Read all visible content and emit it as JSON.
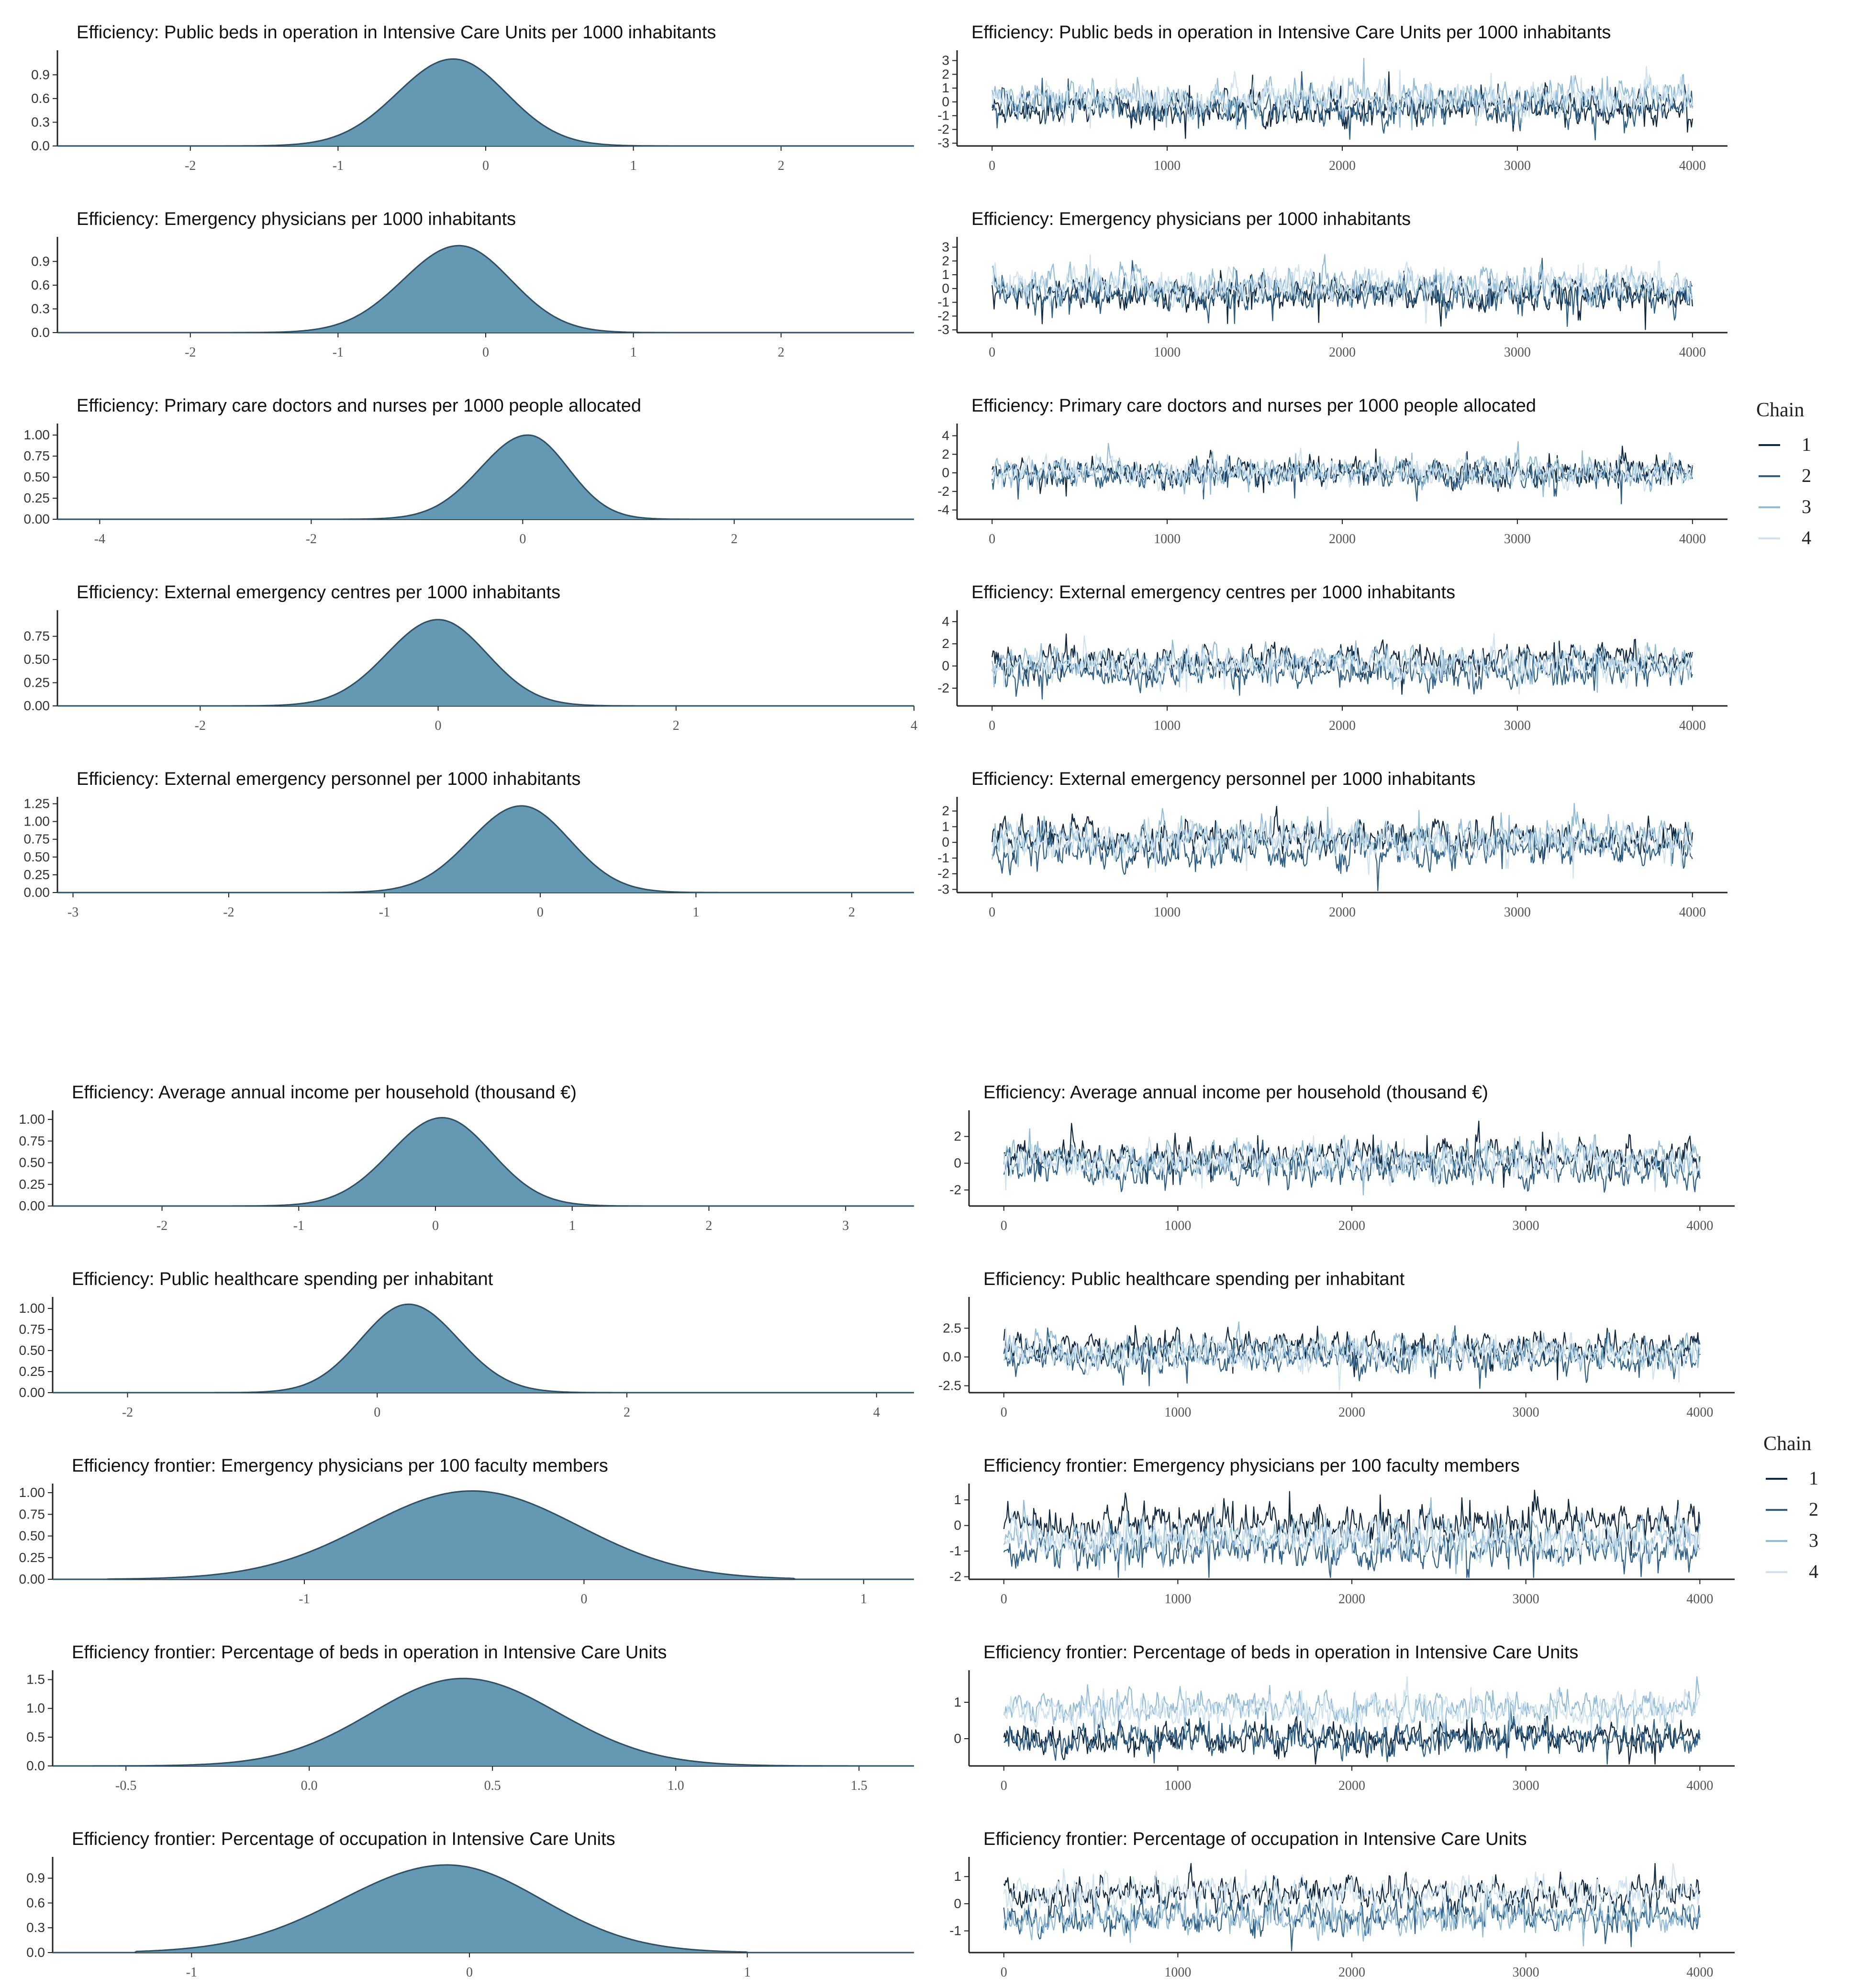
{
  "colors": {
    "density_fill": "#6598b3",
    "density_line": "#2c5068",
    "axis": "#222222",
    "chains": [
      "#0f2840",
      "#2e5f86",
      "#92bbd6",
      "#cfe2ef"
    ]
  },
  "legends": [
    {
      "title": "Chain",
      "items": [
        "1",
        "2",
        "3",
        "4"
      ]
    },
    {
      "title": "Chain",
      "items": [
        "1",
        "2",
        "3",
        "4"
      ]
    }
  ],
  "chart_data": [
    {
      "type": "area",
      "panel": "density",
      "title": "Efficiency: Public beds in operation in Intensive Care Units per 1000 inhabitants",
      "xlim": [
        -2.9,
        2.9
      ],
      "xticks": [
        -2,
        -1,
        0,
        1,
        2
      ],
      "ylim": [
        0,
        1.15
      ],
      "yticks": [
        0.0,
        0.3,
        0.6,
        0.9
      ],
      "ytick_labels": [
        "0.0",
        "0.3",
        "0.6",
        "0.9"
      ],
      "mode": -0.22,
      "peak": 1.1,
      "sd_left": 0.38,
      "sd_right": 0.36,
      "support": [
        -2.0,
        1.5
      ]
    },
    {
      "type": "area",
      "panel": "density",
      "title": "Efficiency: Emergency physicians per 1000 inhabitants",
      "xlim": [
        -2.9,
        2.9
      ],
      "xticks": [
        -2,
        -1,
        0,
        1,
        2
      ],
      "ylim": [
        0,
        1.15
      ],
      "yticks": [
        0.0,
        0.3,
        0.6,
        0.9
      ],
      "ytick_labels": [
        "0.0",
        "0.3",
        "0.6",
        "0.9"
      ],
      "mode": -0.18,
      "peak": 1.1,
      "sd_left": 0.38,
      "sd_right": 0.35,
      "support": [
        -2.9,
        2.9
      ]
    },
    {
      "type": "area",
      "panel": "density",
      "title": "Efficiency: Primary care doctors and nurses per 1000 people allocated",
      "xlim": [
        -4.4,
        3.7
      ],
      "xticks": [
        -4,
        -2,
        0,
        2
      ],
      "ylim": [
        0,
        1.08
      ],
      "yticks": [
        0.0,
        0.25,
        0.5,
        0.75,
        1.0
      ],
      "ytick_labels": [
        "0.00",
        "0.25",
        "0.50",
        "0.75",
        "1.00"
      ],
      "mode": 0.05,
      "peak": 1.0,
      "sd_left": 0.45,
      "sd_right": 0.38,
      "support": [
        -1.7,
        2.0
      ]
    },
    {
      "type": "area",
      "panel": "density",
      "title": "Efficiency: External emergency centres per 1000 inhabitants",
      "xlim": [
        -3.2,
        4.0
      ],
      "xticks": [
        -2,
        0,
        2,
        4
      ],
      "ylim": [
        0,
        0.98
      ],
      "yticks": [
        0.0,
        0.25,
        0.5,
        0.75
      ],
      "ytick_labels": [
        "0.00",
        "0.25",
        "0.50",
        "0.75"
      ],
      "mode": 0.0,
      "peak": 0.93,
      "sd_left": 0.43,
      "sd_right": 0.41,
      "support": [
        -3.2,
        4.0
      ]
    },
    {
      "type": "area",
      "panel": "density",
      "title": "Efficiency: External emergency personnel per 1000 inhabitants",
      "xlim": [
        -3.1,
        2.4
      ],
      "xticks": [
        -3,
        -2,
        -1,
        0,
        1,
        2
      ],
      "ylim": [
        0,
        1.28
      ],
      "yticks": [
        0.0,
        0.25,
        0.5,
        0.75,
        1.0,
        1.25
      ],
      "ytick_labels": [
        "0.00",
        "0.25",
        "0.50",
        "0.75",
        "1.00",
        "1.25"
      ],
      "mode": -0.12,
      "peak": 1.22,
      "sd_left": 0.33,
      "sd_right": 0.31,
      "support": [
        -1.4,
        1.3
      ]
    },
    {
      "type": "area",
      "panel": "density",
      "title": "Efficiency: Average annual income per household (thousand €)",
      "xlim": [
        -2.8,
        3.5
      ],
      "xticks": [
        -2,
        -1,
        0,
        1,
        2,
        3
      ],
      "ylim": [
        0,
        1.05
      ],
      "yticks": [
        0.0,
        0.25,
        0.5,
        0.75,
        1.0
      ],
      "ytick_labels": [
        "0.00",
        "0.25",
        "0.50",
        "0.75",
        "1.00"
      ],
      "mode": 0.05,
      "peak": 1.02,
      "sd_left": 0.38,
      "sd_right": 0.36,
      "support": [
        -1.9,
        2.1
      ]
    },
    {
      "type": "area",
      "panel": "density",
      "title": "Efficiency: Public healthcare spending per inhabitant",
      "xlim": [
        -2.6,
        4.3
      ],
      "xticks": [
        -2,
        0,
        2,
        4
      ],
      "ylim": [
        0,
        1.08
      ],
      "yticks": [
        0.0,
        0.25,
        0.5,
        0.75,
        1.0
      ],
      "ytick_labels": [
        "0.00",
        "0.25",
        "0.50",
        "0.75",
        "1.00"
      ],
      "mode": 0.25,
      "peak": 1.05,
      "sd_left": 0.38,
      "sd_right": 0.4,
      "support": [
        -2.6,
        4.3
      ]
    },
    {
      "type": "area",
      "panel": "density",
      "title": "Efficiency frontier: Emergency physicians per 100 faculty members",
      "xlim": [
        -1.9,
        1.18
      ],
      "xticks": [
        -1,
        0,
        1
      ],
      "ylim": [
        0,
        1.05
      ],
      "yticks": [
        0.0,
        0.25,
        0.5,
        0.75,
        1.0
      ],
      "ytick_labels": [
        "0.00",
        "0.25",
        "0.50",
        "0.75",
        "1.00"
      ],
      "mode": -0.4,
      "peak": 1.02,
      "sd_left": 0.38,
      "sd_right": 0.38,
      "support": [
        -1.7,
        0.75
      ]
    },
    {
      "type": "area",
      "panel": "density",
      "title": "Efficiency frontier: Percentage of beds in operation in Intensive Care Units",
      "xlim": [
        -0.7,
        1.65
      ],
      "xticks": [
        -0.5,
        0.0,
        0.5,
        1.0,
        1.5
      ],
      "xtick_labels": [
        "-0.5",
        "0.0",
        "0.5",
        "1.0",
        "1.5"
      ],
      "ylim": [
        0,
        1.58
      ],
      "yticks": [
        0.0,
        0.5,
        1.0,
        1.5
      ],
      "ytick_labels": [
        "0.0",
        "0.5",
        "1.0",
        "1.5"
      ],
      "mode": 0.42,
      "peak": 1.52,
      "sd_left": 0.25,
      "sd_right": 0.26,
      "support": [
        -0.7,
        1.65
      ]
    },
    {
      "type": "area",
      "panel": "density",
      "title": "Efficiency frontier: Percentage of occupation in Intensive Care Units",
      "xlim": [
        -1.5,
        1.6
      ],
      "xticks": [
        -1,
        0,
        1
      ],
      "ylim": [
        0,
        1.1
      ],
      "yticks": [
        0.0,
        0.3,
        0.6,
        0.9
      ],
      "ytick_labels": [
        "0.0",
        "0.3",
        "0.6",
        "0.9"
      ],
      "mode": -0.08,
      "peak": 1.06,
      "sd_left": 0.38,
      "sd_right": 0.34,
      "support": [
        -1.2,
        1.0
      ]
    },
    {
      "type": "line",
      "panel": "trace",
      "title": "Efficiency: Public beds in operation in Intensive Care Units per 1000 inhabitants",
      "xlim": [
        -200,
        4200
      ],
      "xticks": [
        0,
        1000,
        2000,
        3000,
        4000
      ],
      "ylim": [
        -3.2,
        3.4
      ],
      "yticks": [
        -3,
        -2,
        -1,
        0,
        1,
        2,
        3
      ],
      "ytick_labels": [
        "-3",
        "-2",
        "-1",
        "0",
        "1",
        "2",
        "3"
      ],
      "iterations": 4000,
      "chains": 4,
      "chain_means": [
        -0.45,
        -0.45,
        0.25,
        0.25
      ],
      "chain_sd": 0.5
    },
    {
      "type": "line",
      "panel": "trace",
      "title": "Efficiency: Emergency physicians per 1000 inhabitants",
      "xlim": [
        -200,
        4200
      ],
      "xticks": [
        0,
        1000,
        2000,
        3000,
        4000
      ],
      "ylim": [
        -3.2,
        3.4
      ],
      "yticks": [
        -3,
        -2,
        -1,
        0,
        1,
        2,
        3
      ],
      "ytick_labels": [
        "-3",
        "-2",
        "-1",
        "0",
        "1",
        "2",
        "3"
      ],
      "iterations": 4000,
      "chains": 4,
      "chain_means": [
        -0.45,
        -0.45,
        0.25,
        0.25
      ],
      "chain_sd": 0.5
    },
    {
      "type": "line",
      "panel": "trace",
      "title": "Efficiency: Primary care doctors and nurses per 1000 people allocated",
      "xlim": [
        -200,
        4200
      ],
      "xticks": [
        0,
        1000,
        2000,
        3000,
        4000
      ],
      "ylim": [
        -5,
        4.8
      ],
      "yticks": [
        -4,
        -2,
        0,
        2,
        4
      ],
      "ytick_labels": [
        "-4",
        "-2",
        "0",
        "2",
        "4"
      ],
      "iterations": 4000,
      "chains": 4,
      "chain_means": [
        0.1,
        -0.3,
        0.2,
        0.0
      ],
      "chain_sd": 0.6
    },
    {
      "type": "line",
      "panel": "trace",
      "title": "Efficiency: External emergency centres per 1000 inhabitants",
      "xlim": [
        -200,
        4200
      ],
      "xticks": [
        0,
        1000,
        2000,
        3000,
        4000
      ],
      "ylim": [
        -3.6,
        4.6
      ],
      "yticks": [
        -2,
        0,
        2,
        4
      ],
      "ytick_labels": [
        "-2",
        "0",
        "2",
        "4"
      ],
      "iterations": 4000,
      "chains": 4,
      "chain_means": [
        0.5,
        -0.6,
        0.4,
        0.0
      ],
      "chain_sd": 0.55
    },
    {
      "type": "line",
      "panel": "trace",
      "title": "Efficiency: External emergency personnel per 1000 inhabitants",
      "xlim": [
        -200,
        4200
      ],
      "xticks": [
        0,
        1000,
        2000,
        3000,
        4000
      ],
      "ylim": [
        -3.2,
        2.6
      ],
      "yticks": [
        -3,
        -2,
        -1,
        0,
        1,
        2
      ],
      "ytick_labels": [
        "-3",
        "-2",
        "-1",
        "0",
        "1",
        "2"
      ],
      "iterations": 4000,
      "chains": 4,
      "chain_means": [
        0.3,
        -0.6,
        0.4,
        0.0
      ],
      "chain_sd": 0.45
    },
    {
      "type": "line",
      "panel": "trace",
      "title": "Efficiency: Average annual income per household (thousand €)",
      "xlim": [
        -200,
        4200
      ],
      "xticks": [
        0,
        1000,
        2000,
        3000,
        4000
      ],
      "ylim": [
        -3.2,
        3.6
      ],
      "yticks": [
        -2,
        0,
        2
      ],
      "ytick_labels": [
        "-2",
        "0",
        "2"
      ],
      "iterations": 4000,
      "chains": 4,
      "chain_means": [
        0.5,
        -0.5,
        0.4,
        0.0
      ],
      "chain_sd": 0.5
    },
    {
      "type": "line",
      "panel": "trace",
      "title": "Efficiency: Public healthcare spending per inhabitant",
      "xlim": [
        -200,
        4200
      ],
      "xticks": [
        0,
        1000,
        2000,
        3000,
        4000
      ],
      "ylim": [
        -3.1,
        4.8
      ],
      "yticks": [
        -2.5,
        0.0,
        2.5
      ],
      "ytick_labels": [
        "-2.5",
        "0.0",
        "2.5"
      ],
      "iterations": 4000,
      "chains": 4,
      "chain_means": [
        0.8,
        -0.2,
        0.6,
        0.2
      ],
      "chain_sd": 0.55
    },
    {
      "type": "line",
      "panel": "trace",
      "title": "Efficiency frontier: Emergency physicians per 100 faculty members",
      "xlim": [
        -200,
        4200
      ],
      "xticks": [
        0,
        1000,
        2000,
        3000,
        4000
      ],
      "ylim": [
        -2.1,
        1.45
      ],
      "yticks": [
        -2,
        -1,
        0,
        1
      ],
      "ytick_labels": [
        "-2",
        "-1",
        "0",
        "1"
      ],
      "iterations": 4000,
      "chains": 4,
      "chain_means": [
        0.1,
        -1.0,
        -0.5,
        -0.5
      ],
      "chain_sd": 0.3
    },
    {
      "type": "line",
      "panel": "trace",
      "title": "Efficiency frontier: Percentage of beds in operation in Intensive Care Units",
      "xlim": [
        -200,
        4200
      ],
      "xticks": [
        0,
        1000,
        2000,
        3000,
        4000
      ],
      "ylim": [
        -0.75,
        1.75
      ],
      "yticks": [
        0,
        1
      ],
      "ytick_labels": [
        "0",
        "1"
      ],
      "iterations": 4000,
      "chains": 4,
      "chain_means": [
        0.0,
        0.0,
        0.85,
        0.75
      ],
      "chain_sd": 0.18
    },
    {
      "type": "line",
      "panel": "trace",
      "title": "Efficiency frontier: Percentage of occupation in Intensive Care Units",
      "xlim": [
        -200,
        4200
      ],
      "xticks": [
        0,
        1000,
        2000,
        3000,
        4000
      ],
      "ylim": [
        -1.8,
        1.55
      ],
      "yticks": [
        -1,
        0,
        1
      ],
      "ytick_labels": [
        "-1",
        "0",
        "1"
      ],
      "iterations": 4000,
      "chains": 4,
      "chain_means": [
        0.4,
        -0.5,
        -0.5,
        0.4
      ],
      "chain_sd": 0.25
    }
  ]
}
